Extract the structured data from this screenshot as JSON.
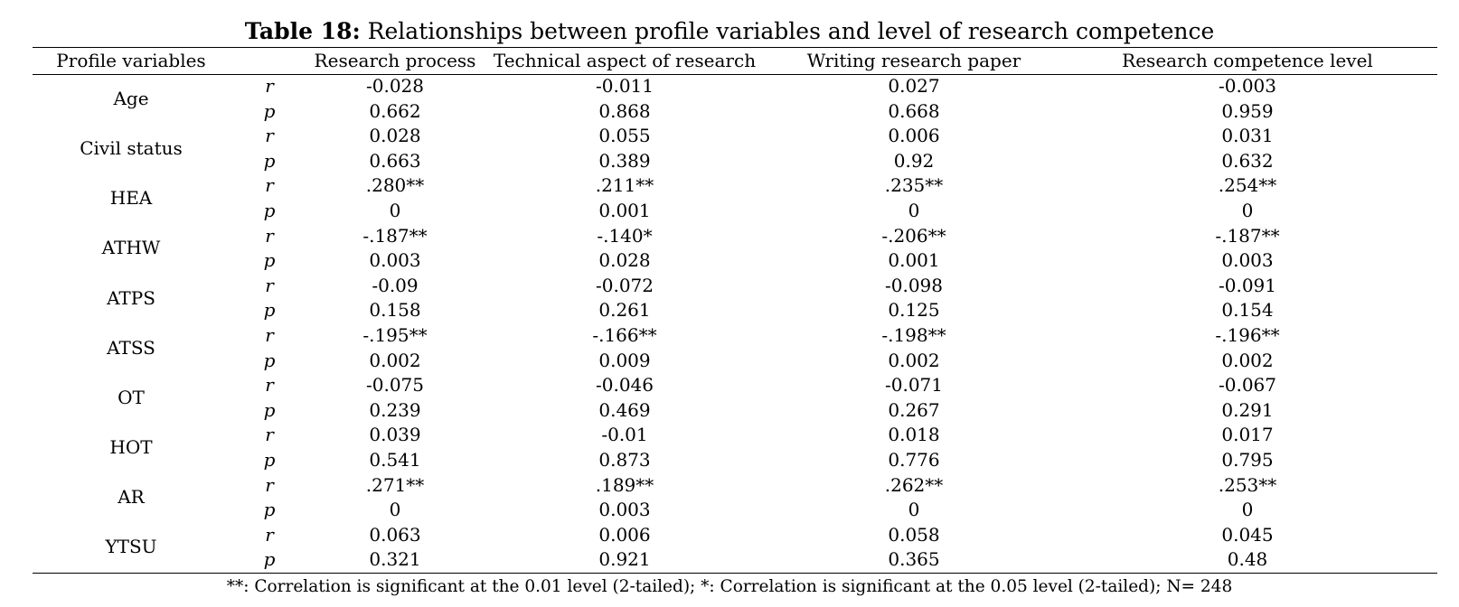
{
  "caption": {
    "label": "Table 18:",
    "text": " Relationships between profile variables and level of research competence"
  },
  "headers": [
    "Profile variables",
    "",
    "Research process",
    "Technical aspect of research",
    "Writing research paper",
    "Research competence level"
  ],
  "rows": [
    {
      "variable": "Age",
      "r": [
        "-0.028",
        "-0.011",
        "0.027",
        "-0.003"
      ],
      "p": [
        "0.662",
        "0.868",
        "0.668",
        "0.959"
      ]
    },
    {
      "variable": "Civil status",
      "r": [
        "0.028",
        "0.055",
        "0.006",
        "0.031"
      ],
      "p": [
        "0.663",
        "0.389",
        "0.92",
        "0.632"
      ]
    },
    {
      "variable": "HEA",
      "r": [
        ".280**",
        ".211**",
        ".235**",
        ".254**"
      ],
      "p": [
        "0",
        "0.001",
        "0",
        "0"
      ]
    },
    {
      "variable": "ATHW",
      "r": [
        "-.187**",
        "-.140*",
        "-.206**",
        "-.187**"
      ],
      "p": [
        "0.003",
        "0.028",
        "0.001",
        "0.003"
      ]
    },
    {
      "variable": "ATPS",
      "r": [
        "-0.09",
        "-0.072",
        "-0.098",
        "-0.091"
      ],
      "p": [
        "0.158",
        "0.261",
        "0.125",
        "0.154"
      ]
    },
    {
      "variable": "ATSS",
      "r": [
        "-.195**",
        "-.166**",
        "-.198**",
        "-.196**"
      ],
      "p": [
        "0.002",
        "0.009",
        "0.002",
        "0.002"
      ]
    },
    {
      "variable": "OT",
      "r": [
        "-0.075",
        "-0.046",
        "-0.071",
        "-0.067"
      ],
      "p": [
        "0.239",
        "0.469",
        "0.267",
        "0.291"
      ]
    },
    {
      "variable": "HOT",
      "r": [
        "0.039",
        "-0.01",
        "0.018",
        "0.017"
      ],
      "p": [
        "0.541",
        "0.873",
        "0.776",
        "0.795"
      ]
    },
    {
      "variable": "AR",
      "r": [
        ".271**",
        ".189**",
        ".262**",
        ".253**"
      ],
      "p": [
        "0",
        "0.003",
        "0",
        "0"
      ]
    },
    {
      "variable": "YTSU",
      "r": [
        "0.063",
        "0.006",
        "0.058",
        "0.045"
      ],
      "p": [
        "0.321",
        "0.921",
        "0.365",
        "0.48"
      ]
    }
  ],
  "stat_labels": {
    "r": "r",
    "p": "p"
  },
  "footnote": "**: Correlation is significant at the 0.01 level (2-tailed); *: Correlation is significant at the 0.05 level (2-tailed); N= 248"
}
